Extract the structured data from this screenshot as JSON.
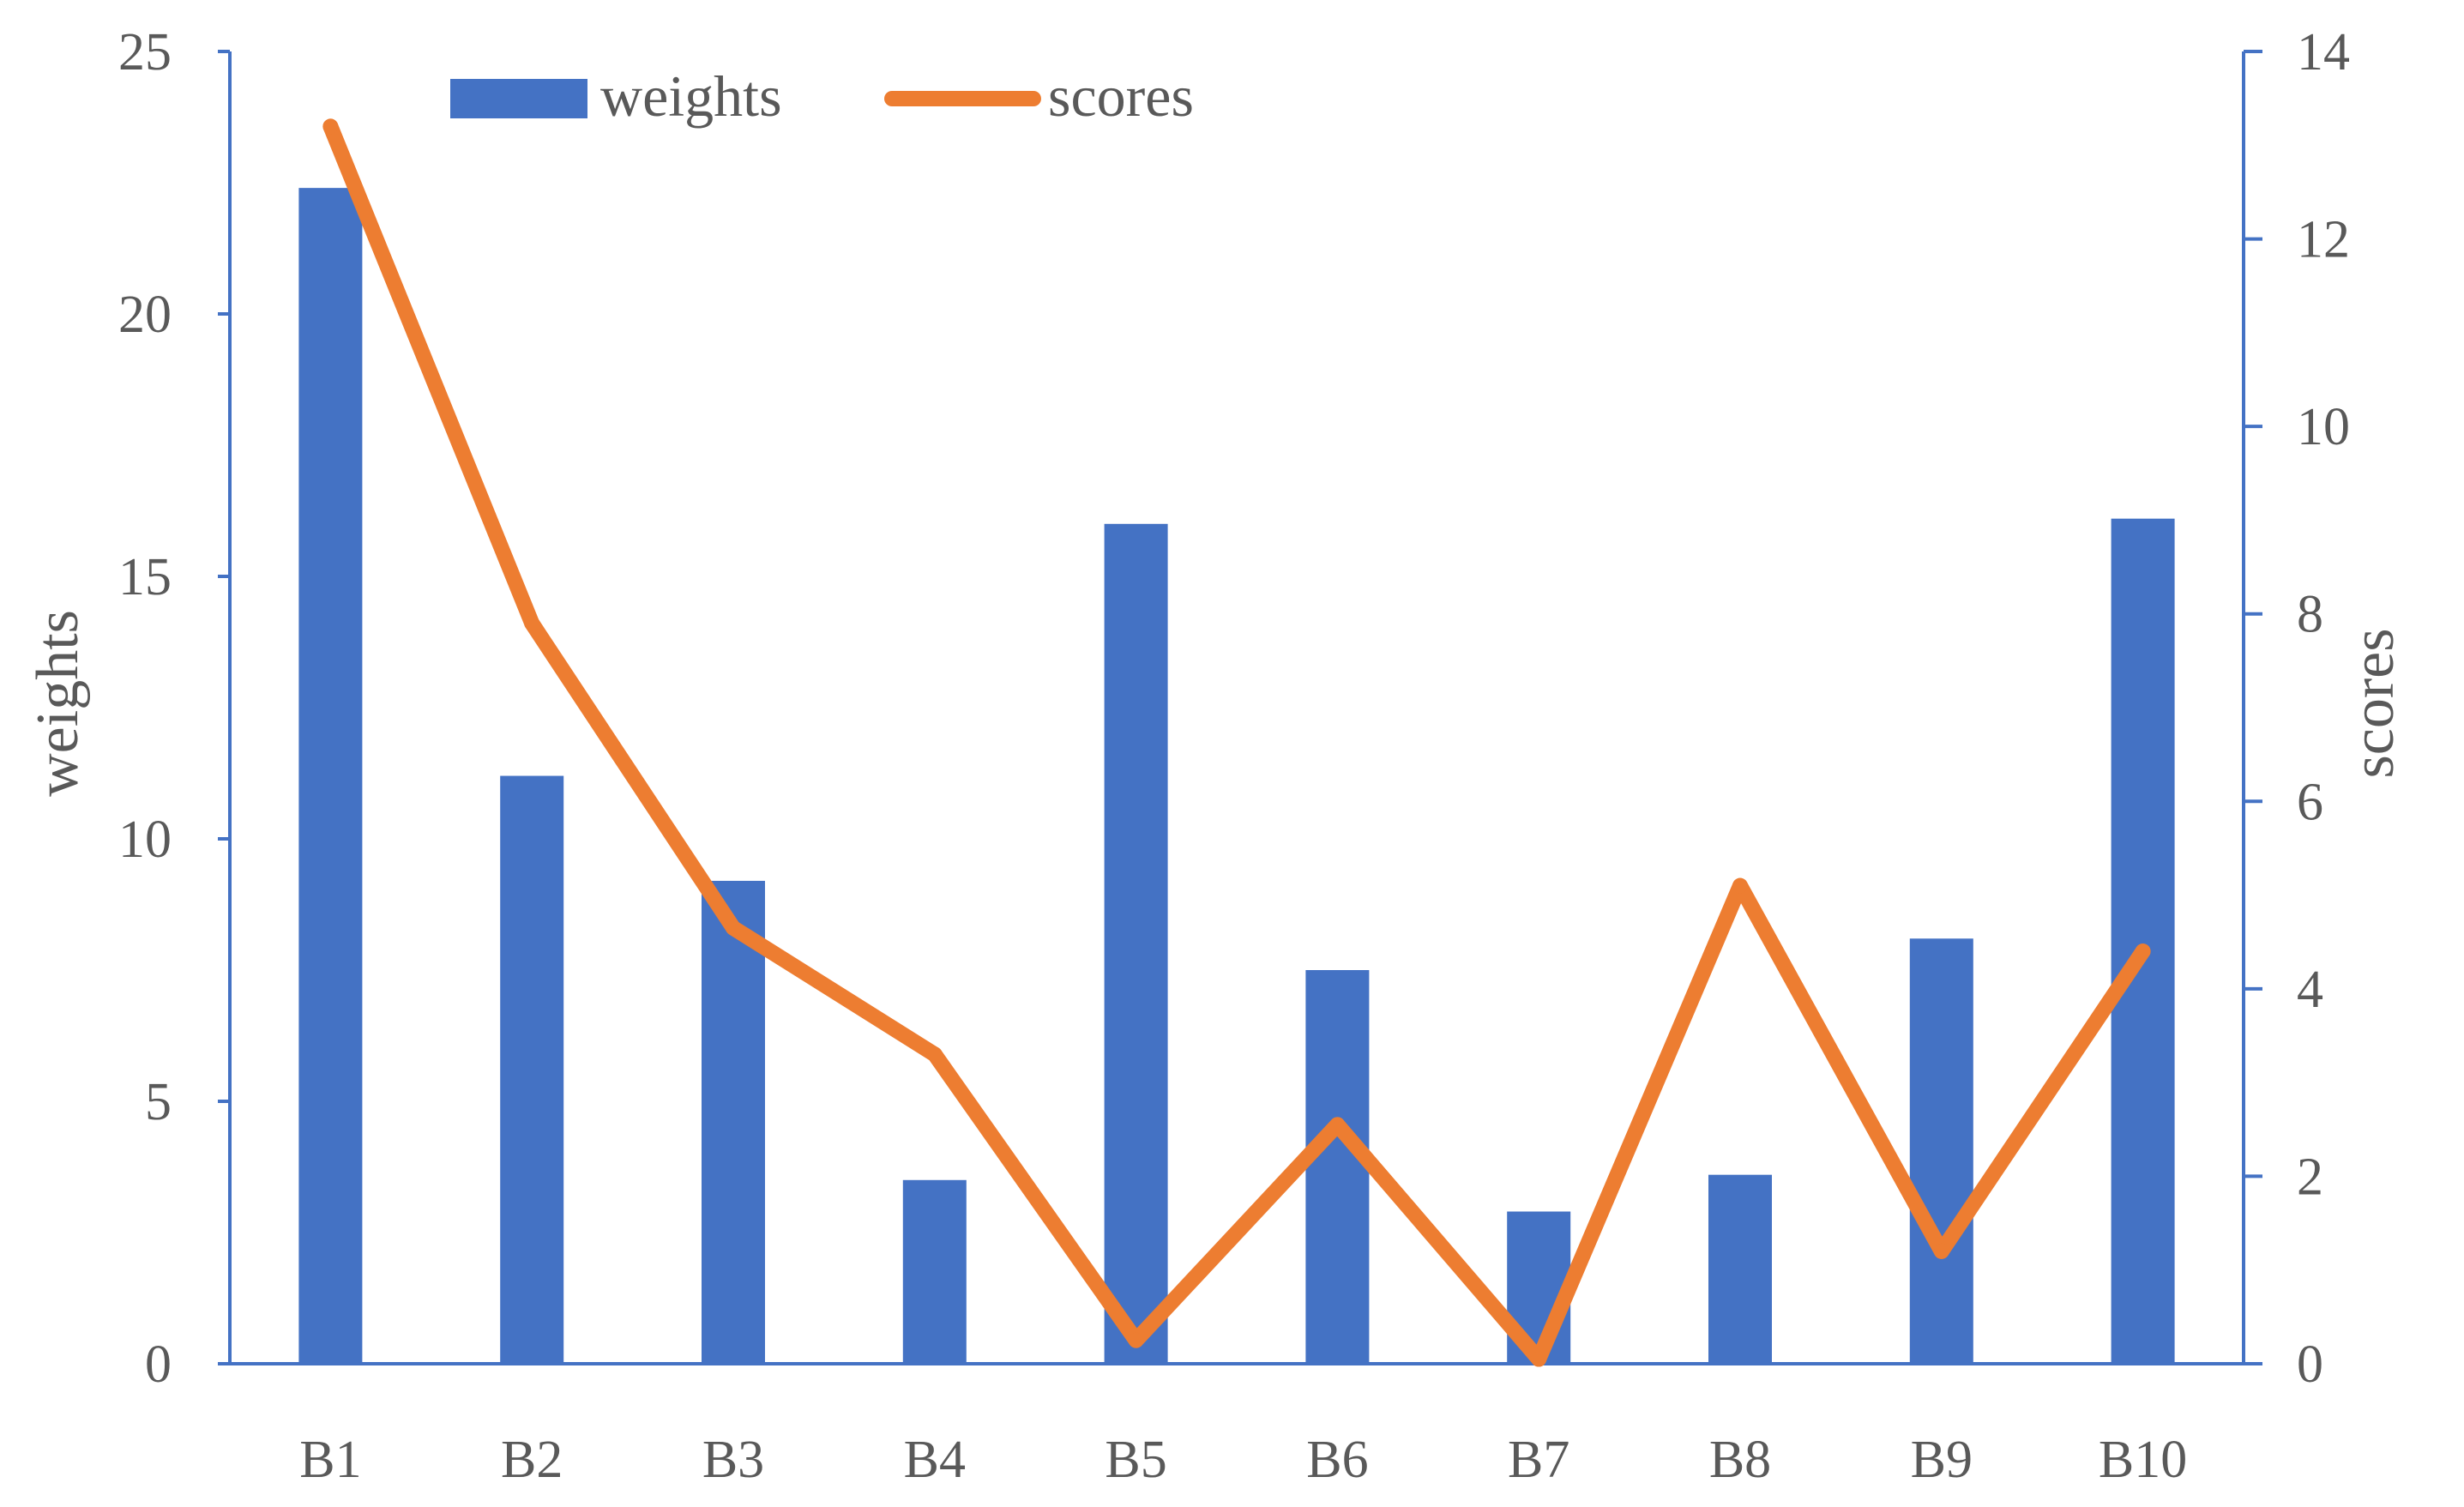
{
  "chart_data": {
    "type": "bar",
    "categories": [
      "B1",
      "B2",
      "B3",
      "B4",
      "B5",
      "B6",
      "B7",
      "B8",
      "B9",
      "B10"
    ],
    "series": [
      {
        "name": "weights",
        "kind": "bar",
        "axis": "left",
        "color": "#4472C4",
        "values": [
          22.4,
          11.2,
          9.2,
          3.5,
          16.0,
          7.5,
          2.9,
          3.6,
          8.1,
          16.1
        ]
      },
      {
        "name": "scores",
        "kind": "line",
        "axis": "right",
        "color": "#ED7D31",
        "values": [
          13.2,
          7.9,
          4.65,
          3.3,
          0.25,
          2.55,
          0.05,
          5.1,
          1.2,
          4.4
        ]
      }
    ],
    "y_left": {
      "label": "weights",
      "lim": [
        0,
        25
      ],
      "ticks": [
        "0",
        "5",
        "10",
        "15",
        "20",
        "25"
      ]
    },
    "y_right": {
      "label": "scores",
      "lim": [
        0,
        14
      ],
      "ticks": [
        "0",
        "2",
        "4",
        "6",
        "8",
        "10",
        "12",
        "14"
      ]
    },
    "xlabel": "",
    "title": "",
    "grid": false,
    "legend": {
      "position": "top-center",
      "entries": [
        "weights",
        "scores"
      ]
    },
    "axis_color": "#4472C4"
  }
}
